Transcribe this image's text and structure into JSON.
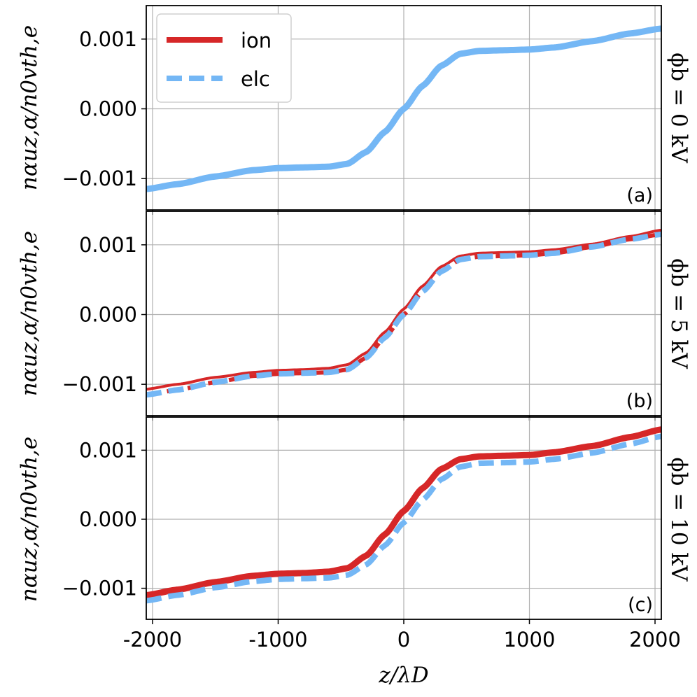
{
  "chart_data": [
    {
      "type": "line",
      "panel_label": "(a)",
      "side_label": "ϕb = 0 kV",
      "ylabel": "nαuz,α/n0vth,e",
      "xlim": [
        -2050,
        2050
      ],
      "ylim": [
        -0.00145,
        0.00148
      ],
      "yticks": [
        "0.001",
        "0.000",
        "−0.001"
      ],
      "grid": true,
      "legend": {
        "placement": "top-left",
        "entries": [
          "ion",
          "elc"
        ]
      },
      "series": [
        {
          "name": "ion",
          "color": "#d62728",
          "style": "dashed-thin",
          "x": [
            -2050,
            -1800,
            -1500,
            -1200,
            -1000,
            -800,
            -600,
            -450,
            -300,
            -150,
            0,
            150,
            300,
            450,
            600,
            800,
            1000,
            1200,
            1500,
            1800,
            2050
          ],
          "y": [
            -0.00115,
            -0.00108,
            -0.00097,
            -0.00088,
            -0.00085,
            -0.00084,
            -0.00083,
            -0.00079,
            -0.00062,
            -0.00033,
            0.0,
            0.00033,
            0.00062,
            0.00079,
            0.00083,
            0.00084,
            0.00085,
            0.00088,
            0.00097,
            0.00108,
            0.00115
          ]
        },
        {
          "name": "elc",
          "color": "#74b7f5",
          "style": "solid-thick",
          "x": [
            -2050,
            -1800,
            -1500,
            -1200,
            -1000,
            -800,
            -600,
            -450,
            -300,
            -150,
            0,
            150,
            300,
            450,
            600,
            800,
            1000,
            1200,
            1500,
            1800,
            2050
          ],
          "y": [
            -0.00115,
            -0.00108,
            -0.00097,
            -0.00088,
            -0.00085,
            -0.00084,
            -0.00083,
            -0.00079,
            -0.00062,
            -0.00033,
            0.0,
            0.00033,
            0.00062,
            0.00079,
            0.00083,
            0.00084,
            0.00085,
            0.00088,
            0.00097,
            0.00108,
            0.00115
          ]
        }
      ]
    },
    {
      "type": "line",
      "panel_label": "(b)",
      "side_label": "ϕb = 5 kV",
      "ylabel": "nαuz,α/n0vth,e",
      "xlim": [
        -2050,
        2050
      ],
      "ylim": [
        -0.00145,
        0.00148
      ],
      "yticks": [
        "0.001",
        "0.000",
        "−0.001"
      ],
      "grid": true,
      "series": [
        {
          "name": "ion",
          "color": "#d62728",
          "style": "solid-thin",
          "x": [
            -2050,
            -1800,
            -1500,
            -1200,
            -1000,
            -800,
            -600,
            -450,
            -300,
            -150,
            0,
            150,
            300,
            450,
            600,
            800,
            1000,
            1200,
            1500,
            1800,
            2050
          ],
          "y": [
            -0.00107,
            -0.001,
            -0.0009,
            -0.00083,
            -0.0008,
            -0.00079,
            -0.00077,
            -0.00072,
            -0.00055,
            -0.00025,
            8e-05,
            0.00041,
            0.00069,
            0.00084,
            0.00088,
            0.00089,
            0.0009,
            0.00093,
            0.00101,
            0.00112,
            0.00121
          ]
        },
        {
          "name": "ion",
          "color": "#d62728",
          "style": "dashed",
          "x": [
            -2050,
            -1800,
            -1500,
            -1200,
            -1000,
            -800,
            -600,
            -450,
            -300,
            -150,
            0,
            150,
            300,
            450,
            600,
            800,
            1000,
            1200,
            1500,
            1800,
            2050
          ],
          "y": [
            -0.00115,
            -0.00108,
            -0.00097,
            -0.00088,
            -0.00085,
            -0.00084,
            -0.00083,
            -0.00079,
            -0.00062,
            -0.00033,
            0.0,
            0.00033,
            0.00062,
            0.00079,
            0.00083,
            0.00084,
            0.00085,
            0.00088,
            0.00097,
            0.00108,
            0.00115
          ]
        },
        {
          "name": "elc",
          "color": "#74b7f5",
          "style": "dashed-thick",
          "x": [
            -2050,
            -1800,
            -1500,
            -1200,
            -1000,
            -800,
            -600,
            -450,
            -300,
            -150,
            0,
            150,
            300,
            450,
            600,
            800,
            1000,
            1200,
            1500,
            1800,
            2050
          ],
          "y": [
            -0.00115,
            -0.00108,
            -0.00097,
            -0.00088,
            -0.00085,
            -0.00084,
            -0.00083,
            -0.00079,
            -0.00062,
            -0.00033,
            0.0,
            0.00033,
            0.00062,
            0.00079,
            0.00083,
            0.00084,
            0.00085,
            0.00088,
            0.00097,
            0.00108,
            0.00115
          ]
        }
      ]
    },
    {
      "type": "line",
      "panel_label": "(c)",
      "side_label": "ϕb = 10 kV",
      "ylabel": "nαuz,α/n0vth,e",
      "xlabel": "z/λD",
      "xlim": [
        -2050,
        2050
      ],
      "ylim": [
        -0.00145,
        0.00148
      ],
      "yticks": [
        "0.001",
        "0.000",
        "−0.001"
      ],
      "xticks": [
        {
          "value": -2000,
          "label": "-2000"
        },
        {
          "value": -1000,
          "label": "-1000"
        },
        {
          "value": 0,
          "label": "0"
        },
        {
          "value": 1000,
          "label": "1000"
        },
        {
          "value": 2000,
          "label": "2000"
        }
      ],
      "grid": true,
      "series": [
        {
          "name": "ion",
          "color": "#d62728",
          "style": "solid-thick",
          "x": [
            -2050,
            -1800,
            -1500,
            -1200,
            -1000,
            -800,
            -600,
            -450,
            -300,
            -150,
            0,
            150,
            300,
            450,
            600,
            800,
            1000,
            1200,
            1500,
            1800,
            2050
          ],
          "y": [
            -0.0011,
            -0.00102,
            -0.00091,
            -0.00082,
            -0.00079,
            -0.00078,
            -0.00076,
            -0.00071,
            -0.00053,
            -0.00022,
            0.00012,
            0.00045,
            0.00073,
            0.00087,
            0.00091,
            0.00092,
            0.00093,
            0.00097,
            0.00106,
            0.00119,
            0.0013
          ]
        },
        {
          "name": "elc",
          "color": "#74b7f5",
          "style": "dashed-thick",
          "x": [
            -2050,
            -1800,
            -1500,
            -1200,
            -1000,
            -800,
            -600,
            -450,
            -300,
            -150,
            0,
            150,
            300,
            450,
            600,
            800,
            1000,
            1200,
            1500,
            1800,
            2050
          ],
          "y": [
            -0.00118,
            -0.0011,
            -0.00099,
            -0.0009,
            -0.00087,
            -0.00086,
            -0.00085,
            -0.00081,
            -0.00066,
            -0.00038,
            -5e-05,
            0.00028,
            0.00058,
            0.00076,
            0.00081,
            0.00082,
            0.00083,
            0.00087,
            0.00096,
            0.00109,
            0.0012
          ]
        }
      ]
    }
  ]
}
